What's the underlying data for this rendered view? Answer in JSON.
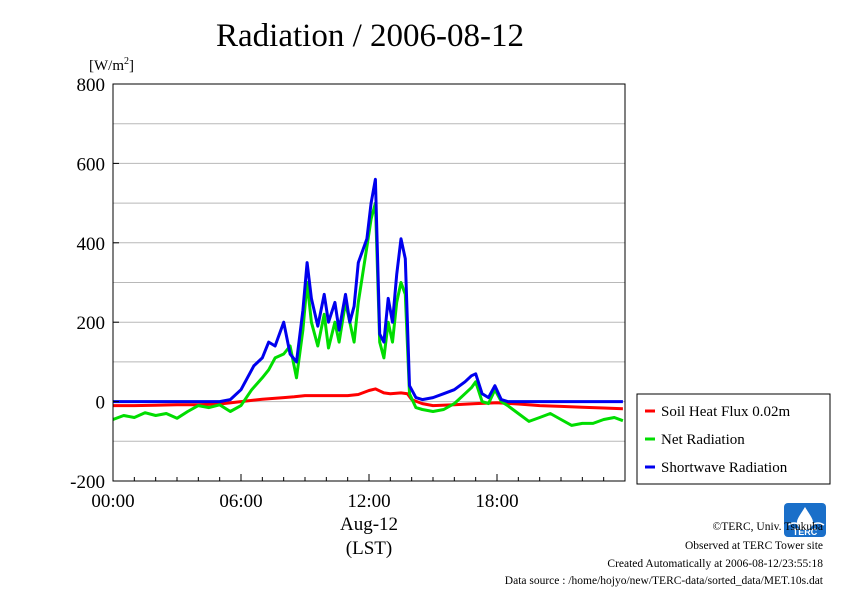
{
  "chart_data": {
    "type": "line",
    "title": "Radiation / 2006-08-12",
    "ylabel": "[W/m²]",
    "ylabel_main": "[W/m",
    "ylabel_sup": "2",
    "ylabel_close": "]",
    "xlabel": "Aug-12",
    "xlabel_sub": "(LST)",
    "ylim": [
      -200,
      800
    ],
    "xlim": [
      0,
      24
    ],
    "yticks": [
      -200,
      0,
      200,
      400,
      600,
      800
    ],
    "xticks": [
      0,
      6,
      12,
      18
    ],
    "xtick_labels": [
      "00:00",
      "06:00",
      "12:00",
      "18:00"
    ],
    "grid": "horizontal",
    "legend_position": "right",
    "series": [
      {
        "name": "Soil Heat Flux 0.02m",
        "color": "#ff0000",
        "x": [
          0,
          1,
          2,
          3,
          4,
          5,
          6,
          7,
          8,
          8.5,
          9,
          10,
          11,
          11.5,
          12,
          12.3,
          12.7,
          13,
          13.5,
          13.8,
          14,
          14.5,
          15,
          16,
          17,
          18,
          19,
          20,
          21,
          22,
          23,
          23.9
        ],
        "y": [
          -10,
          -10,
          -9,
          -8,
          -8,
          -6,
          0,
          6,
          10,
          12,
          15,
          15,
          15,
          18,
          28,
          32,
          22,
          20,
          22,
          20,
          5,
          -5,
          -10,
          -8,
          -5,
          -3,
          -6,
          -10,
          -12,
          -14,
          -16,
          -18
        ]
      },
      {
        "name": "Net Radiation",
        "color": "#00dd00",
        "x": [
          0,
          0.5,
          1,
          1.5,
          2,
          2.5,
          3,
          3.5,
          4,
          4.5,
          5,
          5.5,
          6,
          6.5,
          7,
          7.3,
          7.6,
          8,
          8.3,
          8.6,
          8.9,
          9.1,
          9.3,
          9.6,
          9.9,
          10.1,
          10.4,
          10.6,
          10.9,
          11.1,
          11.3,
          11.5,
          11.7,
          11.9,
          12.1,
          12.3,
          12.5,
          12.7,
          12.9,
          13.1,
          13.3,
          13.5,
          13.7,
          13.9,
          14.2,
          14.5,
          15,
          15.5,
          16,
          16.5,
          16.8,
          17,
          17.3,
          17.6,
          17.9,
          18.2,
          18.5,
          19,
          19.5,
          20,
          20.5,
          21,
          21.5,
          22,
          22.5,
          23,
          23.5,
          23.9
        ],
        "y": [
          -45,
          -35,
          -40,
          -28,
          -35,
          -30,
          -42,
          -25,
          -10,
          -15,
          -8,
          -25,
          -10,
          30,
          60,
          80,
          110,
          120,
          140,
          60,
          180,
          300,
          200,
          140,
          220,
          135,
          200,
          150,
          250,
          200,
          150,
          250,
          320,
          390,
          460,
          500,
          150,
          110,
          200,
          150,
          250,
          300,
          270,
          20,
          -15,
          -20,
          -25,
          -20,
          -5,
          20,
          35,
          50,
          0,
          -5,
          30,
          0,
          -10,
          -30,
          -50,
          -40,
          -30,
          -45,
          -60,
          -55,
          -55,
          -45,
          -40,
          -48
        ]
      },
      {
        "name": "Shortwave Radiation",
        "color": "#0000ee",
        "x": [
          0,
          1,
          2,
          3,
          4,
          5,
          5.5,
          6,
          6.3,
          6.6,
          7,
          7.3,
          7.6,
          8,
          8.3,
          8.6,
          8.9,
          9.1,
          9.3,
          9.6,
          9.9,
          10.1,
          10.4,
          10.6,
          10.9,
          11.1,
          11.3,
          11.5,
          11.7,
          11.9,
          12.1,
          12.3,
          12.5,
          12.7,
          12.9,
          13.1,
          13.3,
          13.5,
          13.7,
          13.9,
          14.2,
          14.5,
          15,
          15.5,
          16,
          16.5,
          16.8,
          17,
          17.3,
          17.6,
          17.9,
          18.2,
          18.5,
          19,
          20,
          21,
          22,
          23,
          23.9
        ],
        "y": [
          0,
          0,
          0,
          0,
          0,
          0,
          5,
          30,
          60,
          90,
          110,
          150,
          140,
          200,
          120,
          100,
          230,
          350,
          260,
          190,
          270,
          200,
          250,
          180,
          270,
          200,
          240,
          350,
          380,
          410,
          500,
          560,
          170,
          150,
          260,
          200,
          320,
          410,
          360,
          40,
          10,
          5,
          10,
          20,
          30,
          50,
          65,
          70,
          20,
          10,
          40,
          5,
          0,
          0,
          0,
          0,
          0,
          0,
          0
        ]
      }
    ]
  },
  "credits": {
    "copyright": "©TERC, Univ. Tsukuba",
    "observed": "Observed at TERC Tower site",
    "created": "Created Automatically at 2006-08-12/23:55:18",
    "source": "Data source : /home/hojyo/new/TERC-data/sorted_data/MET.10s.dat"
  },
  "logo": {
    "text": "TERC",
    "color": "#1a6fc9"
  }
}
